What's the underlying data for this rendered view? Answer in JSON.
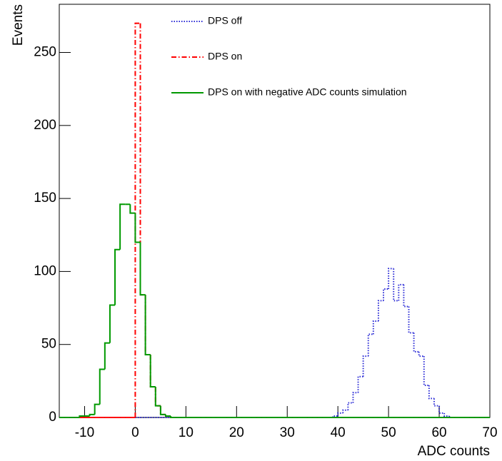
{
  "chart_data": {
    "type": "histogram",
    "xlabel": "ADC counts",
    "ylabel": "Events",
    "bins": [
      -15,
      -14,
      -13,
      -12,
      -11,
      -10,
      -9,
      -8,
      -7,
      -6,
      -5,
      -4,
      -3,
      -2,
      -1,
      0,
      1,
      2,
      3,
      4,
      5,
      6,
      7,
      8,
      9,
      10,
      11,
      12,
      13,
      14,
      15,
      16,
      17,
      18,
      19,
      20,
      21,
      22,
      23,
      24,
      25,
      26,
      27,
      28,
      29,
      30,
      31,
      32,
      33,
      34,
      35,
      36,
      37,
      38,
      39,
      40,
      41,
      42,
      43,
      44,
      45,
      46,
      47,
      48,
      49,
      50,
      51,
      52,
      53,
      54,
      55,
      56,
      57,
      58,
      59,
      60,
      61,
      62,
      63,
      64,
      65,
      66,
      67,
      68,
      69,
      70
    ],
    "series": [
      {
        "name": "DPS off",
        "color": "#2b2bd6",
        "style": "dotted",
        "values": [
          0,
          0,
          0,
          0,
          0,
          0,
          0,
          0,
          0,
          0,
          0,
          0,
          0,
          0,
          0,
          0,
          0,
          0,
          0,
          0,
          0,
          0,
          0,
          0,
          0,
          0,
          0,
          0,
          0,
          0,
          0,
          0,
          0,
          0,
          0,
          0,
          0,
          0,
          0,
          0,
          0,
          0,
          0,
          0,
          0,
          0,
          0,
          0,
          0,
          0,
          0,
          0,
          0,
          0,
          1,
          3,
          5,
          10,
          17,
          28,
          42,
          57,
          66,
          80,
          88,
          102,
          80,
          91,
          76,
          58,
          45,
          42,
          22,
          13,
          8,
          3,
          1,
          0,
          0,
          0,
          0,
          0,
          0,
          0,
          0
        ]
      },
      {
        "name": "DPS on",
        "color": "#ff0000",
        "style": "dashdot",
        "values": [
          0,
          0,
          0,
          0,
          0,
          0,
          0,
          0,
          0,
          0,
          0,
          0,
          0,
          0,
          0,
          270,
          84,
          43,
          21,
          8,
          2,
          1,
          0,
          0,
          0,
          0,
          0,
          0,
          0,
          0,
          0,
          0,
          0,
          0,
          0,
          0,
          0,
          0,
          0,
          0,
          0,
          0,
          0,
          0,
          0,
          0,
          0,
          0,
          0,
          0,
          0,
          0,
          0,
          0,
          0,
          0,
          0,
          0,
          0,
          0,
          0,
          0,
          0,
          0,
          0,
          0,
          0,
          0,
          0,
          0,
          0,
          0,
          0,
          0,
          0,
          0,
          0,
          0,
          0,
          0,
          0,
          0,
          0,
          0,
          0
        ]
      },
      {
        "name": "DPS on with negative ADC counts simulation",
        "color": "#009900",
        "style": "solid",
        "values": [
          0,
          0,
          0,
          0,
          1,
          1,
          2,
          9,
          33,
          51,
          77,
          115,
          146,
          146,
          140,
          120,
          84,
          43,
          21,
          8,
          2,
          1,
          0,
          0,
          0,
          0,
          0,
          0,
          0,
          0,
          0,
          0,
          0,
          0,
          0,
          0,
          0,
          0,
          0,
          0,
          0,
          0,
          0,
          0,
          0,
          0,
          0,
          0,
          0,
          0,
          0,
          0,
          0,
          0,
          0,
          0,
          0,
          0,
          0,
          0,
          0,
          0,
          0,
          0,
          0,
          0,
          0,
          0,
          0,
          0,
          0,
          0,
          0,
          0,
          0,
          0,
          0,
          0,
          0,
          0,
          0,
          0,
          0,
          0,
          0
        ]
      }
    ],
    "xlim": [
      -15,
      70
    ],
    "xticks": [
      -10,
      0,
      10,
      20,
      30,
      40,
      50,
      60,
      70
    ],
    "ylim": [
      0,
      283
    ],
    "yticks": [
      0,
      50,
      100,
      150,
      200,
      250
    ],
    "legend": "top"
  }
}
